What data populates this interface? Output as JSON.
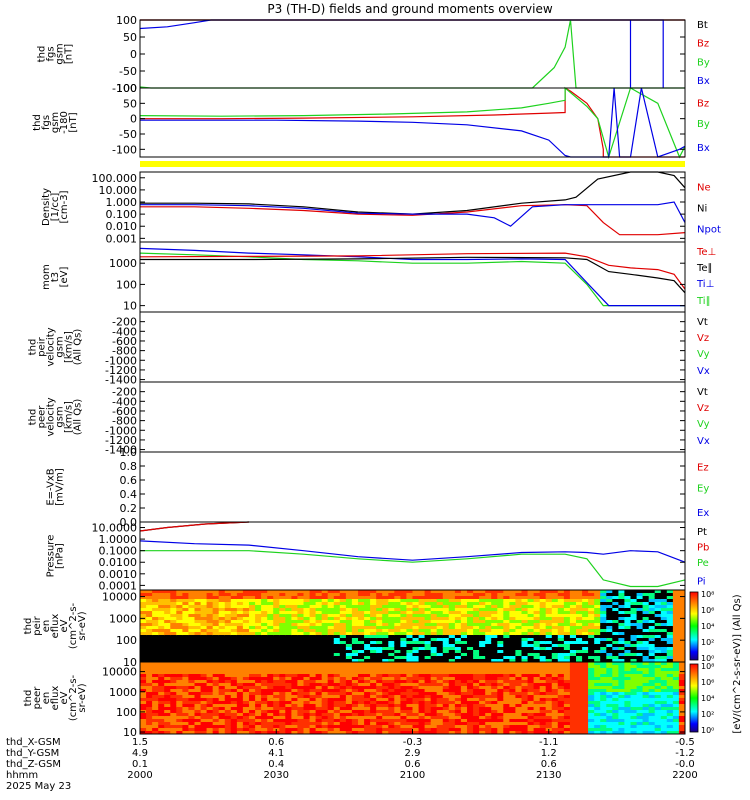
{
  "title": "P3 (TH-D) fields and ground moments overview",
  "colors": {
    "black": "#000000",
    "red": "#e00000",
    "green": "#1ed21e",
    "blue": "#0000e6",
    "yellow": "#ffff00"
  },
  "time_axis": {
    "row_labels": [
      "thd_X-GSM",
      "thd_Y-GSM",
      "thd_Z-GSM",
      "hhmm",
      "2025 May 23"
    ],
    "ticks": [
      {
        "x": 0.0,
        "values": [
          "1.5",
          "4.9",
          "0.1",
          "2000"
        ]
      },
      {
        "x": 0.25,
        "values": [
          "0.6",
          "4.1",
          "0.4",
          "2030"
        ]
      },
      {
        "x": 0.5,
        "values": [
          "-0.3",
          "2.9",
          "0.6",
          "2100"
        ]
      },
      {
        "x": 0.75,
        "values": [
          "-1.1",
          "1.2",
          "0.6",
          "2130"
        ]
      },
      {
        "x": 1.0,
        "values": [
          "-0.5",
          "-1.2",
          "-0.0",
          "2200"
        ]
      }
    ]
  },
  "colorbar": {
    "tick_labels": [
      "10⁰",
      "10²",
      "10⁴",
      "10⁶",
      "10⁸"
    ],
    "unit_label": "[eV/(cm^2-s-sr-eV)] (All Qs)"
  },
  "chart_data": [
    {
      "type": "line",
      "id": "fgs_gsm",
      "ylabel": [
        "thd",
        "fgs",
        "gsm",
        "[nT]"
      ],
      "ylim": [
        -100,
        100
      ],
      "yticks": [
        100,
        50,
        0,
        -50,
        -100
      ],
      "legend": [
        {
          "name": "Bt",
          "color": "black"
        },
        {
          "name": "Bz",
          "color": "red"
        },
        {
          "name": "By",
          "color": "green"
        },
        {
          "name": "Bx",
          "color": "blue"
        }
      ],
      "series": [
        {
          "name": "Bt",
          "color": "black",
          "x": [
            0.0,
            1.0
          ],
          "y": [
            100,
            100
          ]
        },
        {
          "name": "Bz",
          "color": "red",
          "x": [
            0.0,
            1.0
          ],
          "y": [
            100,
            100
          ]
        },
        {
          "name": "By",
          "color": "green",
          "x": [
            0.0,
            0.02,
            0.04,
            0.72,
            0.76,
            0.78,
            0.79,
            0.8,
            1.0
          ],
          "y": [
            -97,
            -100,
            -100,
            -100,
            -40,
            20,
            100,
            -100,
            -100
          ]
        },
        {
          "name": "Bx",
          "color": "blue",
          "x": [
            0.0,
            0.05,
            0.1,
            0.13,
            0.14,
            0.9,
            0.9,
            0.9,
            0.96,
            0.96,
            0.96
          ],
          "y": [
            75,
            80,
            92,
            100,
            100,
            100,
            -100,
            100,
            100,
            -100,
            100
          ]
        }
      ]
    },
    {
      "type": "line",
      "id": "fgs_gsm_zoom",
      "ylabel": [
        "thd",
        "fgs",
        "gsm",
        "-180",
        "[nT]"
      ],
      "ylim": [
        -125,
        100
      ],
      "yticks": [
        100,
        50,
        0,
        -50,
        -100
      ],
      "legend": [
        {
          "name": "Bz",
          "color": "red"
        },
        {
          "name": "By",
          "color": "green"
        },
        {
          "name": "Bx",
          "color": "blue"
        }
      ],
      "series": [
        {
          "name": "Bz",
          "color": "red",
          "x": [
            0.0,
            0.15,
            0.3,
            0.5,
            0.65,
            0.75,
            0.78,
            0.78,
            0.79,
            0.82,
            0.84,
            0.85,
            0.85,
            1.0
          ],
          "y": [
            0,
            0,
            2,
            6,
            12,
            18,
            20,
            100,
            90,
            50,
            0,
            -100,
            -125,
            -125
          ]
        },
        {
          "name": "By",
          "color": "green",
          "x": [
            0.0,
            0.15,
            0.3,
            0.45,
            0.6,
            0.7,
            0.75,
            0.78,
            0.78,
            0.82,
            0.84,
            0.86,
            0.9,
            0.95,
            0.99,
            1.0
          ],
          "y": [
            10,
            8,
            10,
            15,
            22,
            35,
            50,
            60,
            100,
            40,
            0,
            -125,
            100,
            50,
            -125,
            -90
          ]
        },
        {
          "name": "Bx",
          "color": "blue",
          "x": [
            0.0,
            0.1,
            0.25,
            0.4,
            0.5,
            0.6,
            0.7,
            0.75,
            0.78,
            0.79,
            0.86,
            0.87,
            0.88,
            0.9,
            0.92,
            0.95,
            0.99,
            1.0
          ],
          "y": [
            -5,
            -5,
            -5,
            -8,
            -12,
            -20,
            -40,
            -70,
            -120,
            -125,
            -125,
            100,
            -125,
            -125,
            100,
            -125,
            -100,
            -90
          ]
        }
      ]
    },
    {
      "type": "line",
      "id": "density",
      "scale": "log",
      "ylabel": [
        "Density",
        "[1/cc]",
        "[cm-3]"
      ],
      "ylim": [
        0.0005,
        300
      ],
      "yticks": [
        100.0,
        10.0,
        1.0,
        0.1,
        0.01,
        0.001
      ],
      "ytick_labels": [
        "100.000",
        "10.000",
        "1.000",
        "0.100",
        "0.010",
        "0.001"
      ],
      "legend": [
        {
          "name": "Ne",
          "color": "red"
        },
        {
          "name": "Ni",
          "color": "black"
        },
        {
          "name": "Npot",
          "color": "blue"
        }
      ],
      "series": [
        {
          "name": "Ni",
          "color": "black",
          "x": [
            0.0,
            0.1,
            0.2,
            0.3,
            0.4,
            0.5,
            0.6,
            0.7,
            0.78,
            0.8,
            0.84,
            0.9,
            0.95,
            0.98,
            1.0
          ],
          "y": [
            0.8,
            0.8,
            0.7,
            0.4,
            0.15,
            0.1,
            0.2,
            0.8,
            1.5,
            2.5,
            80,
            300,
            300,
            150,
            15
          ]
        },
        {
          "name": "Ne",
          "color": "red",
          "x": [
            0.0,
            0.1,
            0.2,
            0.3,
            0.4,
            0.5,
            0.6,
            0.7,
            0.78,
            0.82,
            0.85,
            0.88,
            0.9,
            0.95,
            1.0
          ],
          "y": [
            0.4,
            0.4,
            0.3,
            0.2,
            0.1,
            0.08,
            0.15,
            0.5,
            0.6,
            0.5,
            0.02,
            0.002,
            0.002,
            0.002,
            0.003
          ]
        },
        {
          "name": "Npot",
          "color": "blue",
          "x": [
            0.0,
            0.1,
            0.2,
            0.3,
            0.4,
            0.5,
            0.6,
            0.65,
            0.68,
            0.72,
            0.78,
            0.85,
            0.95,
            0.98,
            1.0
          ],
          "y": [
            0.6,
            0.6,
            0.5,
            0.3,
            0.12,
            0.1,
            0.1,
            0.05,
            0.01,
            0.4,
            0.6,
            0.6,
            0.6,
            1.0,
            0.02
          ]
        }
      ]
    },
    {
      "type": "line",
      "id": "moment_temperature",
      "scale": "log",
      "ylabel": [
        "mom",
        "t3",
        "[eV]"
      ],
      "ylim": [
        5,
        10000
      ],
      "yticks": [
        1000,
        100,
        10
      ],
      "ytick_labels": [
        "1000",
        "100",
        "10"
      ],
      "legend": [
        {
          "name": "Te⊥",
          "color": "red"
        },
        {
          "name": "Te∥",
          "color": "black"
        },
        {
          "name": "Ti⊥",
          "color": "blue"
        },
        {
          "name": "Ti∥",
          "color": "green"
        }
      ],
      "series": [
        {
          "name": "Ti∥",
          "color": "green",
          "x": [
            0.0,
            0.1,
            0.2,
            0.3,
            0.4,
            0.5,
            0.6,
            0.7,
            0.78,
            0.82,
            0.85,
            0.9,
            1.0
          ],
          "y": [
            3000,
            2500,
            2000,
            1500,
            1300,
            1000,
            1000,
            1200,
            1000,
            100,
            10,
            10,
            10
          ]
        },
        {
          "name": "Ti⊥",
          "color": "blue",
          "x": [
            0.0,
            0.1,
            0.2,
            0.3,
            0.4,
            0.5,
            0.6,
            0.7,
            0.78,
            0.82,
            0.86,
            0.9,
            0.96,
            1.0
          ],
          "y": [
            5000,
            4000,
            3000,
            2500,
            2000,
            1500,
            1500,
            1600,
            1500,
            120,
            10,
            10,
            10,
            10
          ]
        },
        {
          "name": "Te∥",
          "color": "black",
          "x": [
            0.0,
            0.2,
            0.4,
            0.6,
            0.78,
            0.82,
            0.86,
            0.9,
            0.95,
            0.98,
            1.0
          ],
          "y": [
            1500,
            1500,
            1600,
            1900,
            1800,
            1500,
            400,
            300,
            200,
            150,
            40
          ]
        },
        {
          "name": "Te⊥",
          "color": "red",
          "x": [
            0.0,
            0.2,
            0.4,
            0.6,
            0.78,
            0.82,
            0.86,
            0.9,
            0.95,
            0.98,
            1.0
          ],
          "y": [
            2000,
            2100,
            2200,
            2800,
            3000,
            2000,
            800,
            600,
            500,
            300,
            60
          ]
        }
      ]
    },
    {
      "type": "line",
      "id": "peir_velocity",
      "ylabel": [
        "thd",
        "peir",
        "velocity",
        "gsm",
        "[km/s]",
        "(All Qs)"
      ],
      "ylim": [
        -1450,
        0
      ],
      "yticks": [
        -200,
        -400,
        -600,
        -800,
        -1000,
        -1200,
        -1400
      ],
      "legend": [
        {
          "name": "Vt",
          "color": "black"
        },
        {
          "name": "Vz",
          "color": "red"
        },
        {
          "name": "Vy",
          "color": "green"
        },
        {
          "name": "Vx",
          "color": "blue"
        }
      ],
      "series": []
    },
    {
      "type": "line",
      "id": "peer_velocity",
      "ylabel": [
        "thd",
        "peer",
        "velocity",
        "gsm",
        "[km/s]",
        "(All Qs)"
      ],
      "ylim": [
        -1450,
        0
      ],
      "yticks": [
        -200,
        -400,
        -600,
        -800,
        -1000,
        -1200,
        -1400
      ],
      "legend": [
        {
          "name": "Vt",
          "color": "black"
        },
        {
          "name": "Vz",
          "color": "red"
        },
        {
          "name": "Vy",
          "color": "green"
        },
        {
          "name": "Vx",
          "color": "blue"
        }
      ],
      "series": []
    },
    {
      "type": "line",
      "id": "electric_field",
      "ylabel": [
        "E=-VxB",
        "[mV/m]"
      ],
      "ylim": [
        0.0,
        1.0
      ],
      "yticks": [
        1.0,
        0.8,
        0.6,
        0.4,
        0.2,
        0.0
      ],
      "ytick_labels": [
        "1.0",
        "0.8",
        "0.6",
        "0.4",
        "0.2",
        "0.0"
      ],
      "legend": [
        {
          "name": "Ez",
          "color": "red"
        },
        {
          "name": "Ey",
          "color": "green"
        },
        {
          "name": "Ex",
          "color": "blue"
        }
      ],
      "series": []
    },
    {
      "type": "line",
      "id": "pressure",
      "scale": "log",
      "ylabel": [
        "Pressure",
        "[nPa]"
      ],
      "ylim": [
        4e-05,
        30
      ],
      "yticks": [
        10.0,
        1.0,
        0.1,
        0.01,
        0.001,
        0.0001
      ],
      "ytick_labels": [
        "10.0000",
        "1.0000",
        "0.1000",
        "0.0100",
        "0.0010",
        "0.0001"
      ],
      "legend": [
        {
          "name": "Pt",
          "color": "black"
        },
        {
          "name": "Pb",
          "color": "red"
        },
        {
          "name": "Pe",
          "color": "green"
        },
        {
          "name": "Pi",
          "color": "blue"
        }
      ],
      "series": [
        {
          "name": "Pt",
          "color": "black",
          "x": [
            0.0,
            0.05,
            0.12,
            0.2
          ],
          "y": [
            5,
            10,
            20,
            30
          ]
        },
        {
          "name": "Pb",
          "color": "red",
          "x": [
            0.0,
            0.05,
            0.12,
            0.2
          ],
          "y": [
            5,
            10,
            20,
            30
          ]
        },
        {
          "name": "Pe",
          "color": "green",
          "x": [
            0.0,
            0.1,
            0.2,
            0.3,
            0.4,
            0.5,
            0.6,
            0.7,
            0.78,
            0.82,
            0.85,
            0.9,
            0.95,
            1.0
          ],
          "y": [
            0.1,
            0.1,
            0.1,
            0.05,
            0.02,
            0.01,
            0.02,
            0.05,
            0.05,
            0.02,
            0.0003,
            8e-05,
            8e-05,
            0.0003
          ]
        },
        {
          "name": "Pi",
          "color": "blue",
          "x": [
            0.0,
            0.1,
            0.2,
            0.3,
            0.4,
            0.5,
            0.6,
            0.7,
            0.78,
            0.82,
            0.85,
            0.9,
            0.95,
            1.0
          ],
          "y": [
            0.7,
            0.4,
            0.3,
            0.1,
            0.03,
            0.015,
            0.03,
            0.07,
            0.08,
            0.07,
            0.05,
            0.1,
            0.08,
            0.01
          ]
        }
      ]
    },
    {
      "type": "heatmap",
      "id": "peir_eflux",
      "scale": "log",
      "ylabel": [
        "thd",
        "peir",
        "en",
        "eflux",
        "eV",
        "(cm^2-s-",
        "sr-eV)"
      ],
      "ylim": [
        10,
        20000
      ],
      "yticks": [
        10000,
        1000,
        100,
        10
      ],
      "ytick_labels": [
        "10000",
        "1000",
        "100",
        "10"
      ],
      "colorbar_ticks": [
        "10⁰",
        "10²",
        "10⁴",
        "10⁶",
        "10⁸"
      ],
      "colorbar_range": [
        0,
        8
      ]
    },
    {
      "type": "heatmap",
      "id": "peer_eflux",
      "scale": "log",
      "ylabel": [
        "thd",
        "peer",
        "en",
        "eflux",
        "eV",
        "(cm^2-s-",
        "sr-eV)"
      ],
      "ylim": [
        8,
        30000
      ],
      "yticks": [
        10000,
        1000,
        100,
        10
      ],
      "ytick_labels": [
        "10000",
        "1000",
        "100",
        "10"
      ],
      "colorbar_ticks": [
        "10⁰",
        "10²",
        "10⁴",
        "10⁶",
        "10⁸"
      ],
      "colorbar_range": [
        0,
        8
      ]
    }
  ]
}
